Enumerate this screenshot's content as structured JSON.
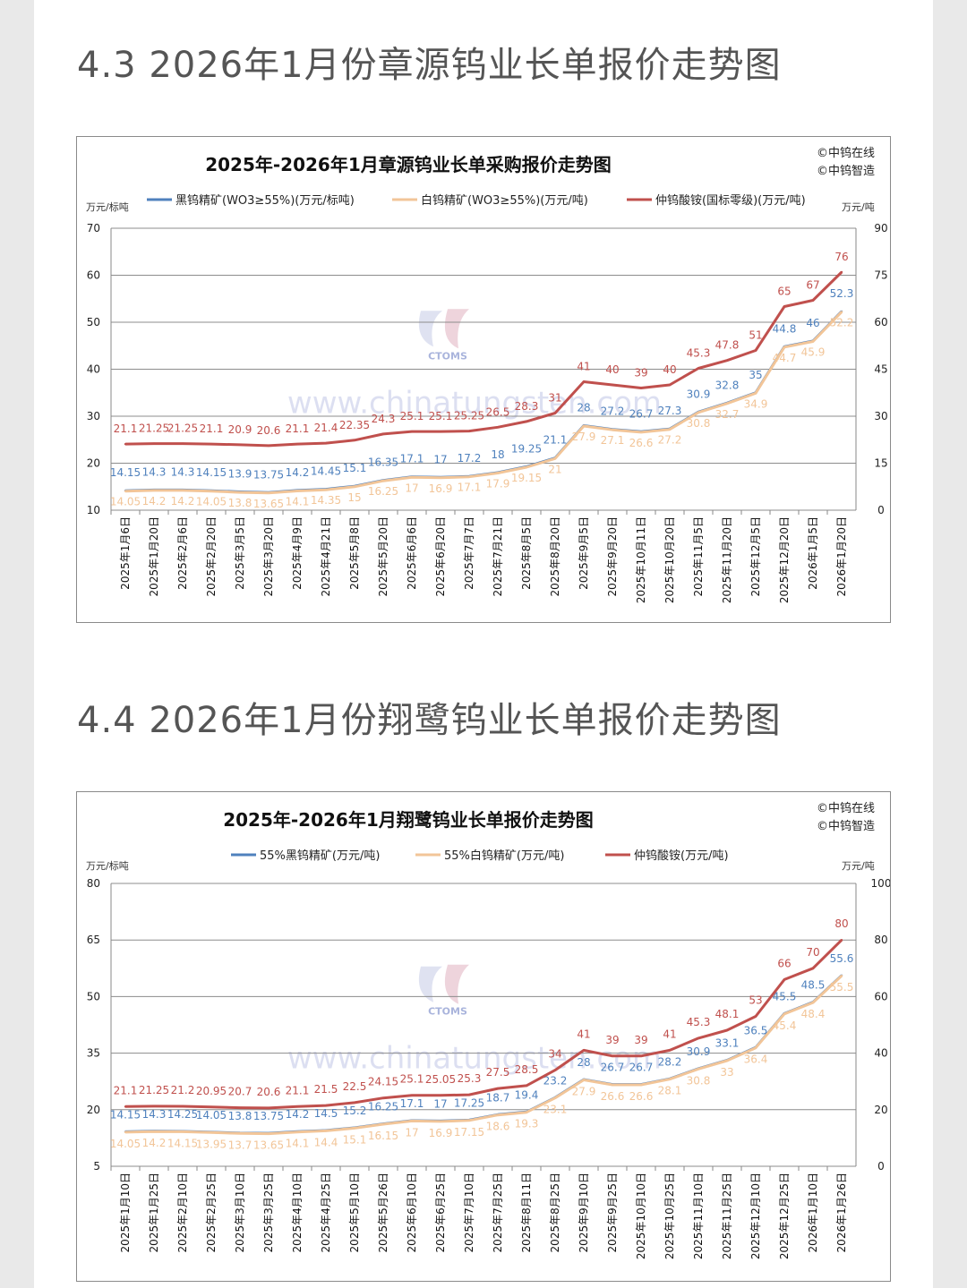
{
  "sections": [
    {
      "heading": "4.3 2026年1月份章源钨业长单报价走势图"
    },
    {
      "heading": "4.4 2026年1月份翔鹭钨业长单报价走势图"
    }
  ],
  "watermark": {
    "brand": "CTOMS",
    "url": "www.chinatungsten.com"
  },
  "chart_data": [
    {
      "type": "line",
      "title": "2025年-2026年1月章源钨业长单采购报价走势图",
      "credits": [
        "©中钨在线",
        "©中钨智造"
      ],
      "left_axis_unit": "万元/标吨",
      "right_axis_unit": "万元/吨",
      "ylim_left": [
        10,
        70
      ],
      "ylim_right": [
        0,
        90
      ],
      "left_ticks": [
        10,
        20,
        30,
        40,
        50,
        60,
        70
      ],
      "right_ticks": [
        0,
        15,
        30,
        45,
        60,
        75,
        90
      ],
      "grid": true,
      "legend_position": "top",
      "categories": [
        "2025年1月6日",
        "2025年1月20日",
        "2025年2月6日",
        "2025年2月20日",
        "2025年3月5日",
        "2025年3月20日",
        "2025年4月9日",
        "2025年4月21日",
        "2025年5月8日",
        "2025年5月20日",
        "2025年6月6日",
        "2025年6月20日",
        "2025年7月7日",
        "2025年7月21日",
        "2025年8月5日",
        "2025年8月20日",
        "2025年9月5日",
        "2025年9月20日",
        "2025年10月11日",
        "2025年10月20日",
        "2025年11月5日",
        "2025年11月20日",
        "2025年12月5日",
        "2025年12月20日",
        "2026年1月5日",
        "2026年1月20日"
      ],
      "series": [
        {
          "name": "黑钨精矿(WO3≥55%)(万元/标吨)",
          "axis": "left",
          "color": "#4f81bd",
          "values": [
            14.15,
            14.3,
            14.3,
            14.15,
            13.9,
            13.75,
            14.2,
            14.45,
            15.1,
            16.35,
            17.1,
            17,
            17.2,
            18,
            19.25,
            21.1,
            28,
            27.2,
            26.7,
            27.3,
            30.9,
            32.8,
            35,
            44.8,
            46,
            52.3
          ],
          "labels": [
            "14.15",
            "14.3",
            "14.3",
            "14.15",
            "13.9",
            "13.75",
            "14.2",
            "14.45",
            "15.1",
            "16.35",
            "17.1",
            "17",
            "17.2",
            "18",
            "19.25",
            "21.1",
            "28",
            "27.2",
            "26.7",
            "27.3",
            "30.9",
            "32.8",
            "35",
            "44.8",
            "46",
            "52.3"
          ]
        },
        {
          "name": "白钨精矿(WO3≥55%)(万元/吨)",
          "axis": "left",
          "color": "#f2c598",
          "values": [
            14.05,
            14.2,
            14.2,
            14.05,
            13.8,
            13.65,
            14.1,
            14.35,
            15,
            16.25,
            17,
            16.9,
            17.1,
            17.9,
            19.15,
            21,
            27.9,
            27.1,
            26.6,
            27.2,
            30.8,
            32.7,
            34.9,
            44.7,
            45.9,
            52.2
          ],
          "labels": [
            "14.05",
            "14.2",
            "14.2",
            "14.05",
            "13.8",
            "13.65",
            "14.1",
            "14.35",
            "15",
            "16.25",
            "17",
            "16.9",
            "17.1",
            "17.9",
            "19.15",
            "21",
            "27.9",
            "27.1",
            "26.6",
            "27.2",
            "30.8",
            "32.7",
            "34.9",
            "44.7",
            "45.9",
            "52.2"
          ]
        },
        {
          "name": "仲钨酸铵(国标零级)(万元/吨)",
          "axis": "right",
          "color": "#c0504d",
          "values": [
            21.1,
            21.25,
            21.25,
            21.1,
            20.9,
            20.6,
            21.1,
            21.4,
            22.35,
            24.3,
            25.1,
            25.1,
            25.25,
            26.5,
            28.3,
            31,
            41,
            40,
            39,
            40,
            45.3,
            47.8,
            51,
            65,
            67,
            76
          ],
          "labels": [
            "21.1",
            "21.25",
            "21.25",
            "21.1",
            "20.9",
            "20.6",
            "21.1",
            "21.4",
            "22.35",
            "24.3",
            "25.1",
            "25.1",
            "25.25",
            "26.5",
            "28.3",
            "31",
            "41",
            "40",
            "39",
            "40",
            "45.3",
            "47.8",
            "51",
            "65",
            "67",
            "76"
          ]
        }
      ]
    },
    {
      "type": "line",
      "title": "2025年-2026年1月翔鹭钨业长单报价走势图",
      "credits": [
        "©中钨在线",
        "©中钨智造"
      ],
      "left_axis_unit": "万元/标吨",
      "right_axis_unit": "万元/吨",
      "ylim_left": [
        5,
        80
      ],
      "ylim_right": [
        0,
        100
      ],
      "left_ticks": [
        5,
        20,
        35,
        50,
        65,
        80
      ],
      "right_ticks": [
        0,
        20,
        40,
        60,
        80,
        100
      ],
      "grid": true,
      "legend_position": "top",
      "categories": [
        "2025年1月10日",
        "2025年1月25日",
        "2025年2月10日",
        "2025年2月25日",
        "2025年3月10日",
        "2025年3月25日",
        "2025年4月10日",
        "2025年4月25日",
        "2025年5月10日",
        "2025年5月26日",
        "2025年6月10日",
        "2025年6月25日",
        "2025年7月10日",
        "2025年7月25日",
        "2025年8月11日",
        "2025年8月25日",
        "2025年9月10日",
        "2025年9月25日",
        "2025年10月10日",
        "2025年10月25日",
        "2025年11月10日",
        "2025年11月25日",
        "2025年12月10日",
        "2025年12月25日",
        "2026年1月10日",
        "2026年1月26日"
      ],
      "series": [
        {
          "name": "55%黑钨精矿(万元/吨)",
          "axis": "left",
          "color": "#4f81bd",
          "values": [
            14.15,
            14.3,
            14.25,
            14.05,
            13.8,
            13.75,
            14.2,
            14.5,
            15.2,
            16.25,
            17.1,
            17,
            17.25,
            18.7,
            19.4,
            23.2,
            28,
            26.7,
            26.7,
            28.2,
            30.9,
            33.1,
            36.5,
            45.5,
            48.5,
            55.6
          ],
          "labels": [
            "14.15",
            "14.3",
            "14.25",
            "14.05",
            "13.8",
            "13.75",
            "14.2",
            "14.5",
            "15.2",
            "16.25",
            "17.1",
            "17",
            "17.25",
            "18.7",
            "19.4",
            "23.2",
            "28",
            "26.7",
            "26.7",
            "28.2",
            "30.9",
            "33.1",
            "36.5",
            "45.5",
            "48.5",
            "55.6"
          ]
        },
        {
          "name": "55%白钨精矿(万元/吨)",
          "axis": "left",
          "color": "#f2c598",
          "values": [
            14.05,
            14.2,
            14.15,
            13.95,
            13.7,
            13.65,
            14.1,
            14.4,
            15.1,
            16.15,
            17,
            16.9,
            17.15,
            18.6,
            19.3,
            23.1,
            27.9,
            26.6,
            26.6,
            28.1,
            30.8,
            33,
            36.4,
            45.4,
            48.4,
            55.5
          ],
          "labels": [
            "14.05",
            "14.2",
            "14.15",
            "13.95",
            "13.7",
            "13.65",
            "14.1",
            "14.4",
            "15.1",
            "16.15",
            "17",
            "16.9",
            "17.15",
            "18.6",
            "19.3",
            "23.1",
            "27.9",
            "26.6",
            "26.6",
            "28.1",
            "30.8",
            "33",
            "36.4",
            "45.4",
            "48.4",
            "55.5"
          ]
        },
        {
          "name": "仲钨酸铵(万元/吨)",
          "axis": "right",
          "color": "#c0504d",
          "values": [
            21.1,
            21.25,
            21.2,
            20.95,
            20.7,
            20.6,
            21.1,
            21.5,
            22.5,
            24.15,
            25.1,
            25.05,
            25.3,
            27.5,
            28.5,
            34,
            41,
            39,
            39,
            41,
            45.3,
            48.1,
            53,
            66,
            70,
            80
          ],
          "labels": [
            "21.1",
            "21.25",
            "21.2",
            "20.95",
            "20.7",
            "20.6",
            "21.1",
            "21.5",
            "22.5",
            "24.15",
            "25.1",
            "25.05",
            "25.3",
            "27.5",
            "28.5",
            "34",
            "41",
            "39",
            "39",
            "41",
            "45.3",
            "48.1",
            "53",
            "66",
            "70",
            "80"
          ]
        }
      ]
    }
  ]
}
